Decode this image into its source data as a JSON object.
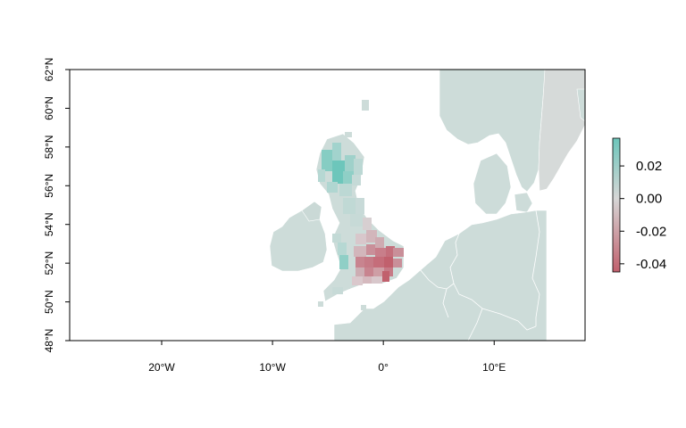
{
  "map": {
    "x_axis": {
      "ticks": [
        {
          "lon": -20,
          "label": "20°W"
        },
        {
          "lon": -10,
          "label": "10°W"
        },
        {
          "lon": 0,
          "label": "0°"
        },
        {
          "lon": 10,
          "label": "10°E"
        }
      ]
    },
    "y_axis": {
      "ticks": [
        {
          "lat": 48,
          "label": "48°N"
        },
        {
          "lat": 50,
          "label": "50°N"
        },
        {
          "lat": 52,
          "label": "52°N"
        },
        {
          "lat": 54,
          "label": "54°N"
        },
        {
          "lat": 56,
          "label": "56°N"
        },
        {
          "lat": 58,
          "label": "58°N"
        },
        {
          "lat": 60,
          "label": "60°N"
        },
        {
          "lat": 62,
          "label": "62°N"
        }
      ]
    },
    "extent": {
      "lon_min": -28.3,
      "lon_max": 18.2,
      "lat_min": 48,
      "lat_max": 62
    },
    "colors": {
      "positive": "#6dc6bb",
      "neutral": "#d6d6d6",
      "negative": "#c1606d",
      "land_base": "#cddcd9",
      "border": "#ffffff"
    }
  },
  "legend": {
    "ticks": [
      {
        "value": 0.02,
        "label": "0.02"
      },
      {
        "value": 0.0,
        "label": "0.00"
      },
      {
        "value": -0.02,
        "label": "-0.02"
      },
      {
        "value": -0.04,
        "label": "-0.04"
      }
    ],
    "range": [
      -0.045,
      0.037
    ]
  }
}
